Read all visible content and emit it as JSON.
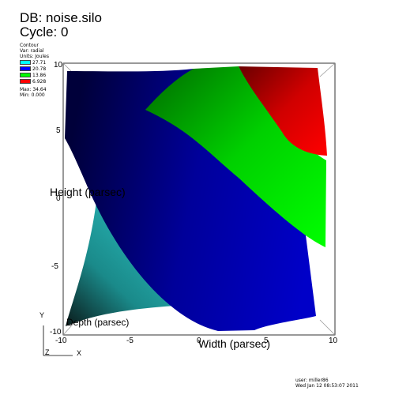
{
  "header": {
    "db": "DB: noise.silo",
    "cycle": "Cycle: 0"
  },
  "legend": {
    "plot_type": "Contour",
    "var": "Var: radial",
    "units": "Units: Joules",
    "levels": [
      {
        "value": "27.71",
        "color": "#00ffff"
      },
      {
        "value": "20.78",
        "color": "#0000ff"
      },
      {
        "value": "13.86",
        "color": "#00ff00"
      },
      {
        "value": "6.928",
        "color": "#ff0000"
      }
    ],
    "max": "Max: 34.64",
    "min": "Min: 0.000"
  },
  "axes": {
    "x_ticks": [
      "-10",
      "-5",
      "0",
      "5",
      "10"
    ],
    "y_ticks": [
      "-10",
      "-5",
      "0",
      "5",
      "10"
    ],
    "xlabel": "Width (parsec)",
    "ylabel": "Height (parsec)",
    "zlabel": "Depth (parsec)",
    "triad_y": "Y",
    "triad_x": "X",
    "triad_z": "Z"
  },
  "footer": {
    "user": "user: miller86",
    "date": "Wed Jan 12 08:53:07 2011"
  }
}
